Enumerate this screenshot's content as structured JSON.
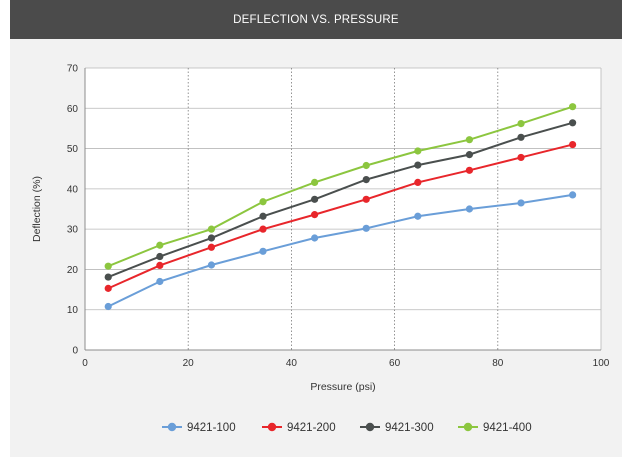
{
  "header": {
    "title": "DEFLECTION VS. PRESSURE"
  },
  "chart_data": {
    "type": "line",
    "title": "DEFLECTION VS. PRESSURE",
    "xlabel": "Pressure (psi)",
    "ylabel": "Deflection (%)",
    "xlim": [
      0,
      100
    ],
    "ylim": [
      0,
      70
    ],
    "xticks": [
      0,
      20,
      40,
      60,
      80,
      100
    ],
    "yticks": [
      0,
      10,
      20,
      30,
      40,
      50,
      60,
      70
    ],
    "x": [
      4.5,
      14.5,
      24.5,
      34.5,
      44.5,
      54.5,
      64.5,
      74.5,
      84.5,
      94.5
    ],
    "grid": "horizontal solid, vertical dotted",
    "legend_position": "bottom",
    "series": [
      {
        "name": "9421-100",
        "color": "#6a9ed8",
        "values": [
          10.8,
          17.0,
          21.1,
          24.5,
          27.8,
          30.2,
          33.2,
          35.0,
          36.5,
          38.5
        ]
      },
      {
        "name": "9421-200",
        "color": "#e8262b",
        "values": [
          15.3,
          21.0,
          25.5,
          30.0,
          33.6,
          37.4,
          41.6,
          44.6,
          47.8,
          51.0
        ]
      },
      {
        "name": "9421-300",
        "color": "#4a4f4e",
        "values": [
          18.1,
          23.2,
          27.8,
          33.2,
          37.4,
          42.3,
          45.9,
          48.5,
          52.8,
          56.4
        ]
      },
      {
        "name": "9421-400",
        "color": "#8cc63f",
        "values": [
          20.8,
          26.0,
          30.0,
          36.8,
          41.6,
          45.8,
          49.4,
          52.2,
          56.2,
          60.4
        ]
      }
    ]
  }
}
